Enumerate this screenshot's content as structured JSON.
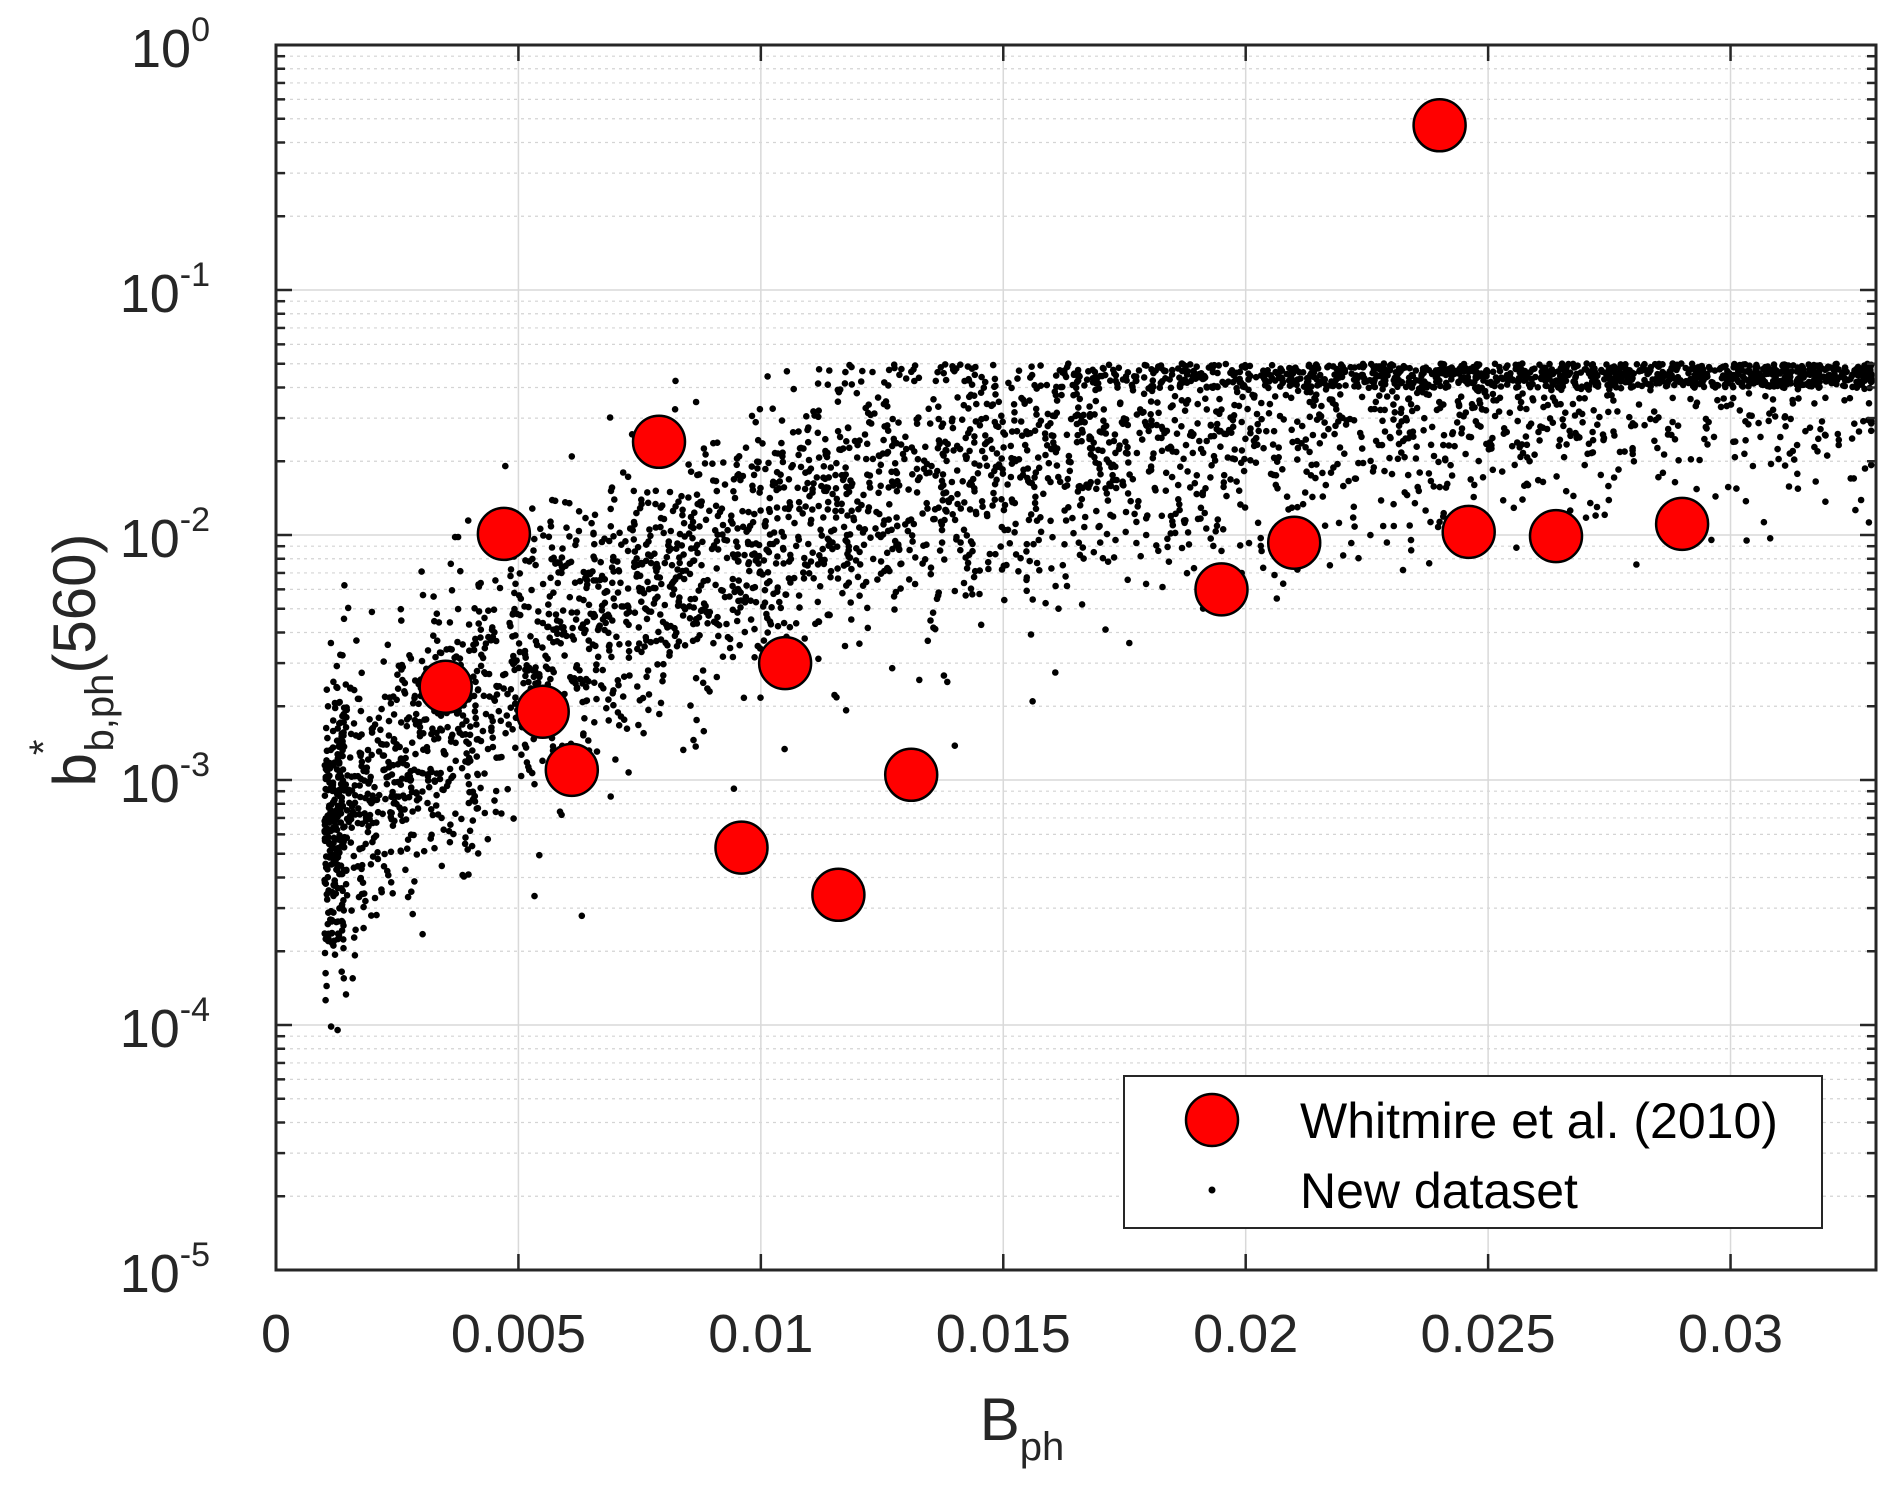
{
  "chart_data": {
    "type": "scatter",
    "xlabel": "B",
    "xlabel_sub": "ph",
    "ylabel_base": "b",
    "ylabel_sup": "*",
    "ylabel_sub": "b,ph",
    "ylabel_suffix": "(560)",
    "x_ticks": [
      "0",
      "0.005",
      "0.01",
      "0.015",
      "0.02",
      "0.025",
      "0.03"
    ],
    "x_tick_values": [
      0,
      0.005,
      0.01,
      0.015,
      0.02,
      0.025,
      0.03
    ],
    "y_ticks": [
      {
        "base": "10",
        "exp": "-5",
        "value": 1e-05
      },
      {
        "base": "10",
        "exp": "-4",
        "value": 0.0001
      },
      {
        "base": "10",
        "exp": "-3",
        "value": 0.001
      },
      {
        "base": "10",
        "exp": "-2",
        "value": 0.01
      },
      {
        "base": "10",
        "exp": "-1",
        "value": 0.1
      },
      {
        "base": "10",
        "exp": "0",
        "value": 1
      }
    ],
    "xlim": [
      0,
      0.033
    ],
    "ylim": [
      1e-05,
      1
    ],
    "y_scale": "log",
    "grid": true,
    "minor_grid": true,
    "legend_position": "bottom-right",
    "series": [
      {
        "name": "Whitmire et al. (2010)",
        "marker": "large-circle",
        "color": "#ff0000",
        "points": [
          [
            0.0035,
            0.0024
          ],
          [
            0.0047,
            0.0101
          ],
          [
            0.0055,
            0.0019
          ],
          [
            0.0061,
            0.0011
          ],
          [
            0.0079,
            0.024
          ],
          [
            0.0096,
            0.00053
          ],
          [
            0.0105,
            0.003
          ],
          [
            0.0116,
            0.00034
          ],
          [
            0.0131,
            0.00105
          ],
          [
            0.0195,
            0.006
          ],
          [
            0.021,
            0.0093
          ],
          [
            0.024,
            0.47
          ],
          [
            0.0246,
            0.0103
          ],
          [
            0.0264,
            0.0099
          ],
          [
            0.029,
            0.0111
          ]
        ]
      },
      {
        "name": "New dataset",
        "marker": "dot",
        "color": "#000000",
        "generated_count": 4200
      }
    ]
  }
}
